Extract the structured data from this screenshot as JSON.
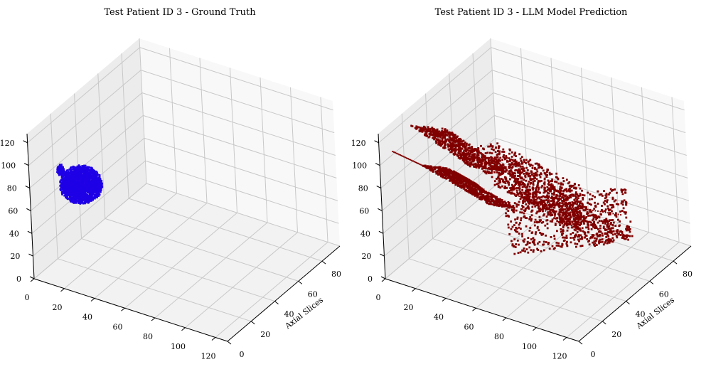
{
  "chart_data": [
    {
      "type": "scatter3d",
      "title": "Test Patient ID 3 - Ground Truth",
      "xlabel": "",
      "ylabel": "Axial Slices",
      "zlabel": "",
      "xlim": [
        0,
        128
      ],
      "ylim": [
        0,
        95
      ],
      "zlim": [
        0,
        128
      ],
      "xticks": [
        0,
        20,
        40,
        60,
        80,
        100,
        120
      ],
      "yticks": [
        0,
        20,
        40,
        60,
        80
      ],
      "zticks": [
        0,
        20,
        40,
        60,
        80,
        100,
        120
      ],
      "grid": true,
      "color": "#1f00e6",
      "blobs": [
        {
          "center": [
            28,
            8,
            88
          ],
          "radius": [
            12,
            10,
            14
          ]
        },
        {
          "center": [
            18,
            4,
            100
          ],
          "radius": [
            2,
            2,
            5
          ]
        }
      ]
    },
    {
      "type": "scatter3d",
      "title": "Test Patient ID 3 - LLM Model Prediction",
      "xlabel": "",
      "ylabel": "Axial Slices",
      "zlabel": "",
      "xlim": [
        0,
        128
      ],
      "ylim": [
        0,
        95
      ],
      "zlim": [
        0,
        128
      ],
      "xticks": [
        0,
        20,
        40,
        60,
        80,
        100,
        120
      ],
      "yticks": [
        0,
        20,
        40,
        60,
        80
      ],
      "zticks": [
        0,
        20,
        40,
        60,
        80,
        100,
        120
      ],
      "grid": true,
      "color": "#800000",
      "planes": [
        {
          "origin": [
            10,
            50,
            70
          ],
          "u": [
            100,
            -10,
            -30
          ],
          "v": [
            -10,
            40,
            -30
          ]
        },
        {
          "origin": [
            60,
            20,
            90
          ],
          "u": [
            40,
            20,
            -40
          ],
          "v": [
            -30,
            40,
            -10
          ]
        },
        {
          "origin": [
            20,
            10,
            100
          ],
          "u": [
            50,
            -5,
            -10
          ],
          "v": [
            0,
            20,
            -20
          ]
        },
        {
          "origin": [
            40,
            50,
            40
          ],
          "u": [
            50,
            40,
            0
          ],
          "v": [
            20,
            -20,
            -20
          ]
        },
        {
          "origin": [
            5,
            20,
            120
          ],
          "u": [
            40,
            0,
            -20
          ],
          "v": [
            0,
            30,
            -30
          ]
        },
        {
          "origin": [
            45,
            5,
            110
          ],
          "u": [
            15,
            0,
            -5
          ],
          "v": [
            0,
            8,
            -15
          ]
        }
      ],
      "strands": [
        {
          "from": [
            5,
            5,
            110
          ],
          "to": [
            30,
            5,
            105
          ]
        },
        {
          "from": [
            60,
            60,
            40
          ],
          "to": [
            90,
            85,
            20
          ]
        },
        {
          "from": [
            70,
            20,
            90
          ],
          "to": [
            100,
            40,
            50
          ]
        }
      ]
    }
  ]
}
